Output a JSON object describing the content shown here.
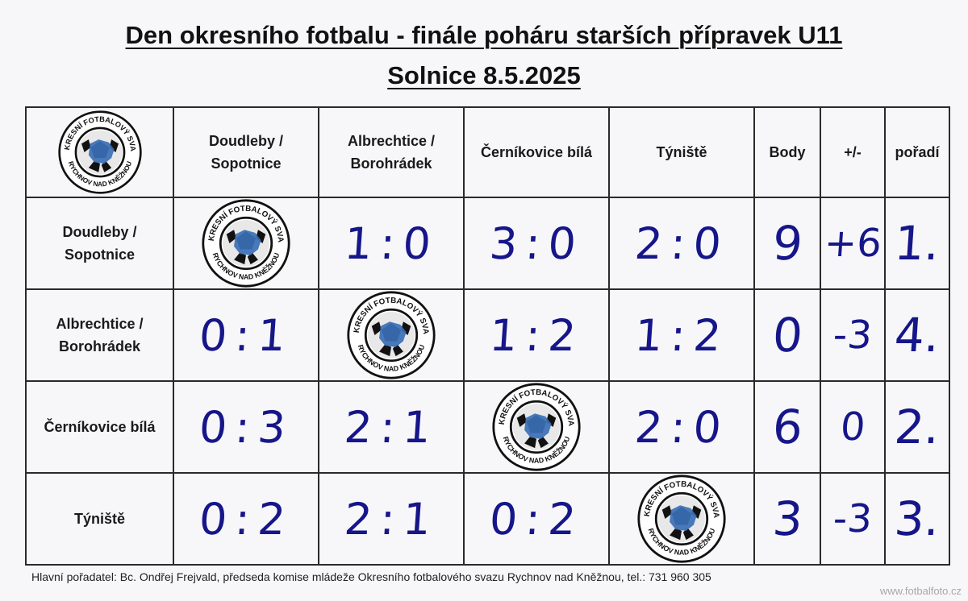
{
  "title": {
    "line1": "Den okresního fotbalu - finále poháru starších přípravek U11",
    "line2": "Solnice 8.5.2025"
  },
  "logo_text": {
    "top": "OKRESNÍ FOTBALOVÝ SVAZ",
    "bottom": "RYCHNOV NAD KNĚŽNOU"
  },
  "table": {
    "teams": [
      {
        "line1": "Doudleby /",
        "line2": "Sopotnice"
      },
      {
        "line1": "Albrechtice /",
        "line2": "Borohrádek"
      },
      {
        "line1": "Černíkovice bílá",
        "line2": ""
      },
      {
        "line1": "Týniště",
        "line2": ""
      }
    ],
    "extra_headers": [
      "Body",
      "+/-",
      "pořadí"
    ],
    "rows": [
      {
        "scores": [
          "",
          "1:0",
          "3:0",
          "2:0"
        ],
        "points": "9",
        "diff": "+6",
        "rank": "1."
      },
      {
        "scores": [
          "0:1",
          "",
          "1:2",
          "1:2"
        ],
        "points": "0",
        "diff": "-3",
        "rank": "4."
      },
      {
        "scores": [
          "0:3",
          "2:1",
          "",
          "2:0"
        ],
        "points": "6",
        "diff": "0",
        "rank": "2."
      },
      {
        "scores": [
          "0:2",
          "2:1",
          "0:2",
          ""
        ],
        "points": "3",
        "diff": "-3",
        "rank": "3."
      }
    ]
  },
  "footer": {
    "organizer": "Hlavní pořadatel: Bc. Ondřej Frejvald, předseda komise mládeže Okresního fotbalového svazu Rychnov nad Kněžnou, tel.: 731 960 305"
  },
  "watermark": "www.fotbalfoto.cz",
  "colors": {
    "ink": "#16168a",
    "logo_blue": "#3a6fb5",
    "grid": "#2a2a2a"
  }
}
